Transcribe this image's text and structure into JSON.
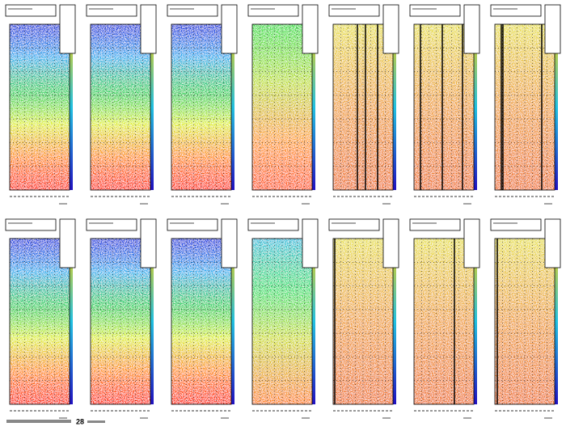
{
  "footer": "28"
}
